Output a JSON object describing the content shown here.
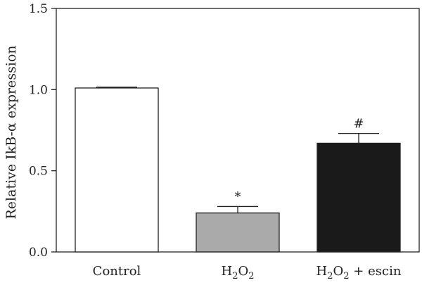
{
  "chart_data": {
    "type": "bar",
    "ylabel": "Relative IkB-α expression",
    "ylim": [
      0,
      1.5
    ],
    "yticks": [
      "0.0",
      "0.5",
      "1.0",
      "1.5"
    ],
    "ytick_values": [
      0,
      0.5,
      1.0,
      1.5
    ],
    "categories": [
      {
        "main": "Control",
        "parts": [
          {
            "t": "Control",
            "sub": false
          }
        ]
      },
      {
        "main": "H2O2",
        "parts": [
          {
            "t": "H",
            "sub": false
          },
          {
            "t": "2",
            "sub": true
          },
          {
            "t": "O",
            "sub": false
          },
          {
            "t": "2",
            "sub": true
          }
        ]
      },
      {
        "main": "H2O2 + escin",
        "parts": [
          {
            "t": "H",
            "sub": false
          },
          {
            "t": "2",
            "sub": true
          },
          {
            "t": "O",
            "sub": false
          },
          {
            "t": "2",
            "sub": true
          },
          {
            "t": " + escin",
            "sub": false
          }
        ]
      }
    ],
    "values": [
      1.01,
      0.24,
      0.67
    ],
    "errors": [
      0.005,
      0.04,
      0.06
    ],
    "annotations": [
      "",
      "*",
      "#"
    ],
    "colors": [
      "#ffffff",
      "#aaaaaa",
      "#1a1a1a"
    ],
    "edge_color": "#222222",
    "grid": false,
    "legend": false
  }
}
